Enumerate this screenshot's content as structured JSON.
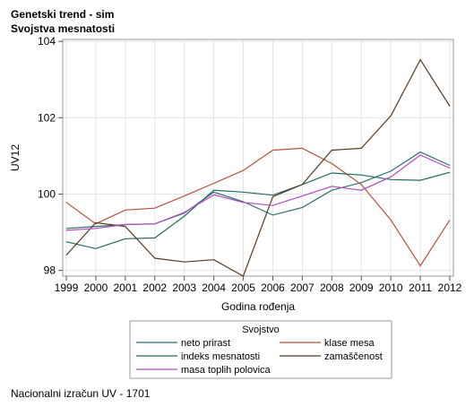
{
  "header": {
    "title": "Genetski trend - sim",
    "subtitle": "Svojstva mesnatosti"
  },
  "footnote": "Nacionalni izračun UV - 1701",
  "chart_data": {
    "type": "line",
    "xlabel": "Godina rođenja",
    "ylabel": "UV12",
    "x": [
      1999,
      2000,
      2001,
      2002,
      2003,
      2004,
      2005,
      2006,
      2007,
      2008,
      2009,
      2010,
      2011,
      2012
    ],
    "ylim": [
      97.85,
      104.05
    ],
    "yticks": [
      98,
      100,
      102,
      104
    ],
    "grid": true,
    "legend": {
      "title": "Svojstvo",
      "placement": "bottom"
    },
    "series": [
      {
        "name": "neto prirast",
        "color": "#2a6f6f",
        "values": [
          99.1,
          99.15,
          99.2,
          99.22,
          99.5,
          100.05,
          99.8,
          99.45,
          99.65,
          100.1,
          100.3,
          100.6,
          101.1,
          100.75
        ]
      },
      {
        "name": "klase mesa",
        "color": "#b5523b",
        "values": [
          99.78,
          99.22,
          99.58,
          99.63,
          99.95,
          100.28,
          100.62,
          101.15,
          101.2,
          100.8,
          100.25,
          99.32,
          98.12,
          99.32
        ]
      },
      {
        "name": "indeks mesnatosti",
        "color": "#1f6b5e",
        "values": [
          98.75,
          98.57,
          98.83,
          98.85,
          99.42,
          100.1,
          100.05,
          99.97,
          100.25,
          100.55,
          100.5,
          100.38,
          100.36,
          100.57
        ]
      },
      {
        "name": "zamaščenost",
        "color": "#5a3a1e",
        "values": [
          98.4,
          99.25,
          99.15,
          98.32,
          98.22,
          98.28,
          97.85,
          99.93,
          100.25,
          101.15,
          101.2,
          102.05,
          103.52,
          102.3
        ]
      },
      {
        "name": "masa toplih polovica",
        "color": "#b44bc8",
        "values": [
          99.05,
          99.1,
          99.2,
          99.22,
          99.52,
          99.98,
          99.78,
          99.7,
          99.95,
          100.2,
          100.1,
          100.45,
          101.02,
          100.68
        ]
      }
    ]
  }
}
